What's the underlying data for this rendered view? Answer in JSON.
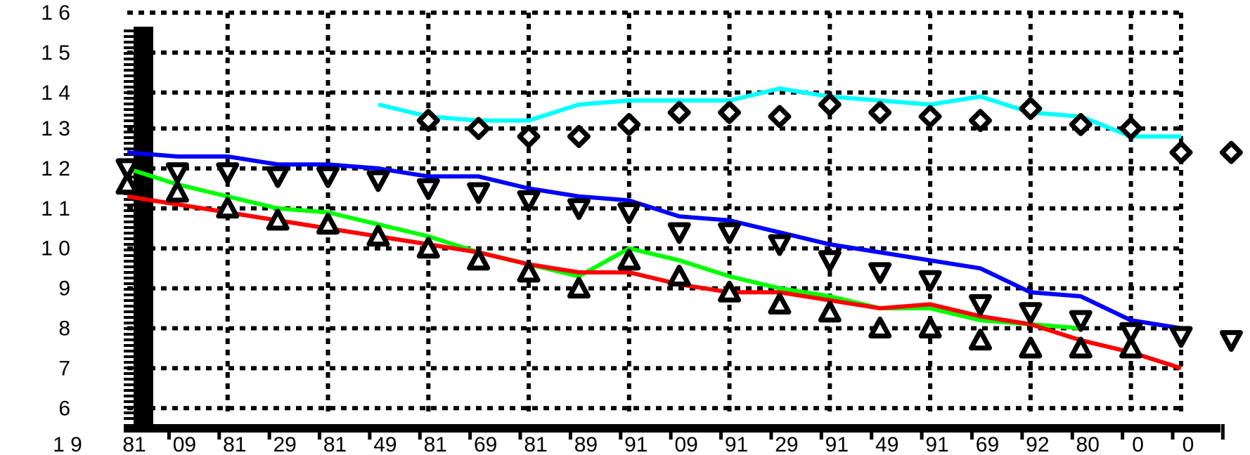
{
  "chart_data": {
    "type": "line",
    "title": "",
    "xlabel": "",
    "ylabel": "",
    "x": [
      1,
      2,
      3,
      4,
      5,
      6,
      7,
      8,
      9,
      10,
      11,
      12,
      13,
      14,
      15,
      16,
      17,
      18,
      19,
      20,
      21,
      22
    ],
    "xlim": [
      1,
      22
    ],
    "ylim": [
      5.8,
      15.8
    ],
    "grid": true,
    "legend": "none",
    "x_tick_labels": [
      "1 9",
      "81",
      "09",
      "81",
      "29",
      "81",
      "49",
      "81",
      "69",
      "81",
      "89",
      "91",
      "09",
      "91",
      "29",
      "91",
      "49",
      "91",
      "69",
      "92",
      "80",
      "0",
      "0"
    ],
    "y_tick_labels": [
      {
        "y": 15.8,
        "label": "1 6"
      },
      {
        "y": 14.8,
        "label": "1 5"
      },
      {
        "y": 13.8,
        "label": "1 4"
      },
      {
        "y": 12.9,
        "label": "1 3"
      },
      {
        "y": 11.9,
        "label": "1 2"
      },
      {
        "y": 10.9,
        "label": "1 1"
      },
      {
        "y": 9.9,
        "label": "1 0"
      },
      {
        "y": 8.9,
        "label": "9"
      },
      {
        "y": 7.9,
        "label": "8"
      },
      {
        "y": 6.9,
        "label": "7"
      },
      {
        "y": 5.9,
        "label": "6"
      }
    ],
    "series": [
      {
        "color": "#00ffff",
        "x": [
          6,
          7,
          8,
          9,
          10,
          11,
          12,
          13,
          14,
          15,
          16,
          17,
          18,
          19,
          20,
          21,
          22
        ],
        "values": [
          13.5,
          13.2,
          13.1,
          13.1,
          13.5,
          13.6,
          13.6,
          13.6,
          13.9,
          13.7,
          13.6,
          13.5,
          13.7,
          13.3,
          13.2,
          12.7,
          12.7
        ]
      },
      {
        "color": "#0000ff",
        "x": [
          1,
          2,
          3,
          4,
          5,
          6,
          7,
          8,
          9,
          10,
          11,
          12,
          13,
          14,
          15,
          16,
          17,
          18,
          19,
          20,
          21,
          22
        ],
        "values": [
          12.3,
          12.2,
          12.2,
          12.0,
          12.0,
          11.9,
          11.7,
          11.7,
          11.4,
          11.2,
          11.1,
          10.7,
          10.6,
          10.3,
          10.0,
          9.8,
          9.6,
          9.4,
          8.8,
          8.7,
          8.1,
          7.9
        ]
      },
      {
        "color": "#00ff00",
        "x": [
          1,
          2,
          3,
          4,
          5,
          6,
          7,
          8,
          9,
          10,
          11,
          12,
          13,
          14,
          15,
          16,
          17,
          18,
          19,
          20
        ],
        "values": [
          11.9,
          11.5,
          11.2,
          10.9,
          10.8,
          10.5,
          10.2,
          9.8,
          9.5,
          9.2,
          9.9,
          9.6,
          9.2,
          8.9,
          8.7,
          8.4,
          8.4,
          8.1,
          8.0,
          7.9
        ]
      },
      {
        "color": "#ff0000",
        "x": [
          1,
          2,
          3,
          4,
          5,
          6,
          7,
          8,
          9,
          10,
          11,
          12,
          13,
          14,
          15,
          16,
          17,
          18,
          19,
          20,
          21,
          22
        ],
        "values": [
          11.2,
          11.0,
          10.8,
          10.6,
          10.4,
          10.2,
          10.0,
          9.8,
          9.5,
          9.3,
          9.3,
          9.0,
          8.8,
          8.8,
          8.6,
          8.4,
          8.5,
          8.2,
          8.0,
          7.6,
          7.3,
          6.9
        ]
      }
    ],
    "markers": [
      {
        "shape": "diamond",
        "x": [
          7,
          8,
          9,
          10,
          11,
          12,
          13,
          14,
          15,
          16,
          17,
          18,
          19,
          20,
          21,
          22,
          23
        ],
        "values": [
          13.1,
          12.9,
          12.7,
          12.7,
          13.0,
          13.3,
          13.3,
          13.2,
          13.5,
          13.3,
          13.2,
          13.1,
          13.4,
          13.0,
          12.9,
          12.3,
          12.3
        ]
      },
      {
        "shape": "triangle-down",
        "x": [
          1,
          2,
          3,
          4,
          5,
          6,
          7,
          8,
          9,
          10,
          11,
          12,
          13,
          14,
          15,
          16,
          17,
          18,
          19,
          20,
          21,
          22,
          23
        ],
        "values": [
          11.9,
          11.8,
          11.8,
          11.7,
          11.7,
          11.6,
          11.4,
          11.3,
          11.1,
          10.9,
          10.8,
          10.3,
          10.3,
          10.0,
          9.6,
          9.3,
          9.1,
          8.5,
          8.3,
          8.1,
          7.8,
          7.7,
          7.6
        ]
      },
      {
        "shape": "triangle-up",
        "x": [
          1,
          2,
          3,
          4,
          5,
          6,
          7,
          8,
          9,
          10,
          11,
          12,
          13,
          14,
          15,
          16,
          17,
          18,
          19,
          20,
          21
        ],
        "values": [
          11.5,
          11.3,
          10.9,
          10.6,
          10.5,
          10.2,
          9.9,
          9.6,
          9.3,
          8.9,
          9.6,
          9.2,
          8.8,
          8.5,
          8.3,
          7.9,
          7.9,
          7.6,
          7.4,
          7.4,
          7.4
        ]
      }
    ]
  }
}
